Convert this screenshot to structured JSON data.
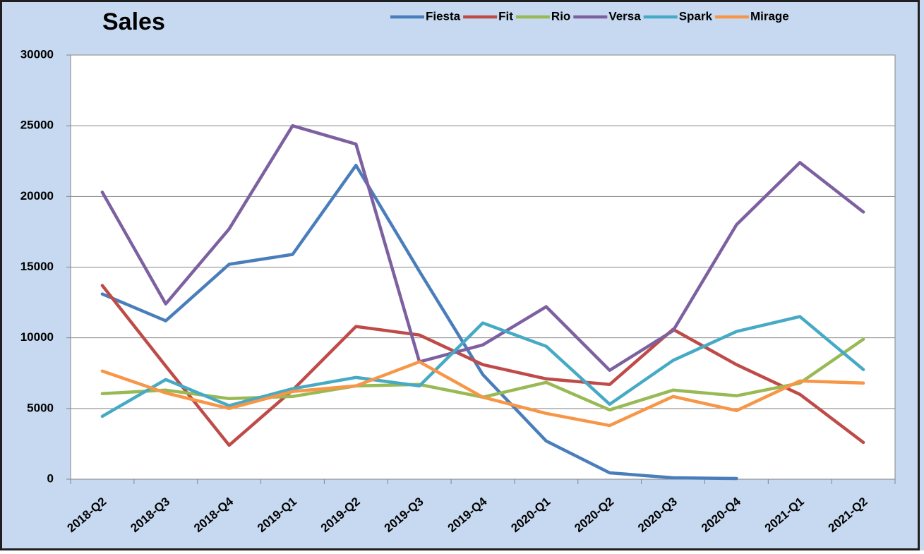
{
  "chart_data": {
    "type": "line",
    "title": "Sales",
    "categories": [
      "2018-Q2",
      "2018-Q3",
      "2018-Q4",
      "2019-Q1",
      "2019-Q2",
      "2019-Q3",
      "2019-Q4",
      "2020-Q1",
      "2020-Q2",
      "2020-Q3",
      "2020-Q4",
      "2021-Q1",
      "2021-Q2"
    ],
    "series": [
      {
        "name": "Fiesta",
        "color": "#4a7ebb",
        "values": [
          13100,
          11200,
          15200,
          15900,
          22200,
          14700,
          7400,
          2700,
          450,
          100,
          50,
          null,
          null
        ]
      },
      {
        "name": "Fit",
        "color": "#be4b48",
        "values": [
          13700,
          8000,
          2400,
          6300,
          10800,
          10200,
          8100,
          7100,
          6700,
          10600,
          8100,
          6000,
          2600
        ]
      },
      {
        "name": "Rio",
        "color": "#98b954",
        "values": [
          6050,
          6300,
          5700,
          5850,
          6600,
          6700,
          5800,
          6850,
          4900,
          6300,
          5900,
          6800,
          9900
        ]
      },
      {
        "name": "Versa",
        "color": "#7d60a0",
        "values": [
          20300,
          12400,
          17700,
          25000,
          23700,
          8300,
          9500,
          12200,
          7700,
          10500,
          18000,
          22400,
          18900
        ]
      },
      {
        "name": "Spark",
        "color": "#46aac5",
        "values": [
          4450,
          7050,
          5200,
          6400,
          7200,
          6600,
          11050,
          9400,
          5300,
          8400,
          10450,
          11500,
          7750
        ]
      },
      {
        "name": "Mirage",
        "color": "#f79646",
        "values": [
          7650,
          6100,
          5000,
          6200,
          6600,
          8300,
          5800,
          4650,
          3800,
          5850,
          4850,
          6950,
          6800
        ]
      }
    ],
    "ylim": [
      0,
      30000
    ],
    "yticks": [
      0,
      5000,
      10000,
      15000,
      20000,
      25000,
      30000
    ],
    "grid": true,
    "legend": "top-right"
  }
}
